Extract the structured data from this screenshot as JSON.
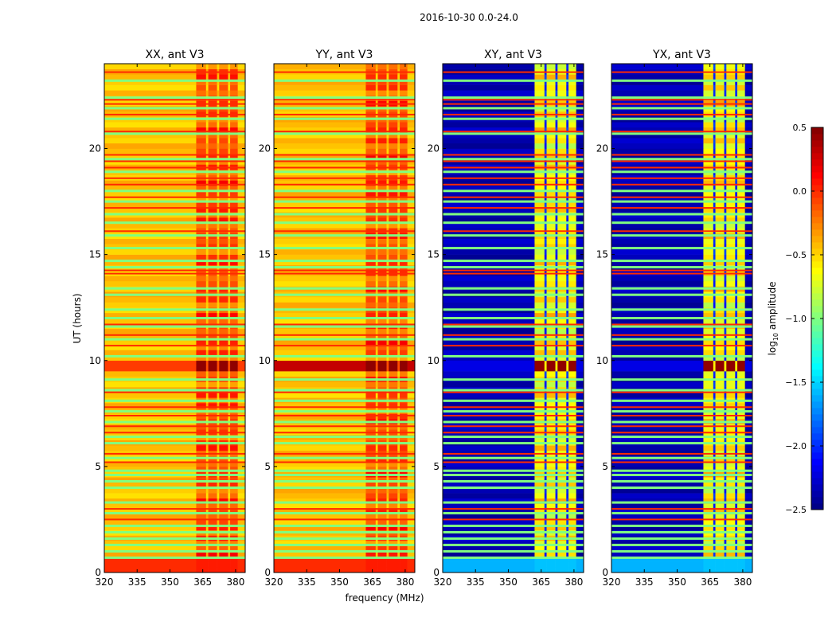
{
  "chart_data": {
    "type": "heatmap",
    "title": "2016-10-30 0.0-24.0",
    "xlabel": "frequency (MHz)",
    "ylabel": "UT (hours)",
    "xlim": [
      320,
      384.4
    ],
    "ylim": [
      0,
      24
    ],
    "xticks": [
      320,
      335,
      350,
      365,
      380
    ],
    "yticks": [
      0,
      5,
      10,
      15,
      20
    ],
    "colorbar": {
      "label_main": "log",
      "label_sub": "10",
      "label_rest": " amplitude",
      "range": [
        -2.5,
        0.5
      ],
      "ticks": [
        -2.5,
        -2.0,
        -1.5,
        -1.0,
        -0.5,
        0.0,
        0.5
      ],
      "tick_labels": [
        "−2.5",
        "−2.0",
        "−1.5",
        "−1.0",
        "−0.5",
        "0.0",
        "0.5"
      ],
      "colormap": "jet"
    },
    "rfi_band_mhz": [
      362,
      381
    ],
    "rfi_gaps_mhz": [
      [
        366.5,
        367.5
      ],
      [
        371.5,
        372.5
      ],
      [
        376.5,
        377.5
      ]
    ],
    "low_rows_hours": [
      0,
      0.7
    ],
    "bright_rows_hours": [
      9.3,
      9.9
    ],
    "flag_lines_green_hours": [
      0.7,
      1.0,
      1.3,
      1.6,
      1.9,
      2.2,
      2.8,
      3.3,
      4.0,
      4.3,
      4.6,
      4.8,
      5.4,
      6.1,
      6.4,
      7.1,
      7.6,
      8.1,
      8.6,
      9.1,
      10.2,
      11.0,
      11.6,
      12.0,
      12.4,
      13.1,
      13.4,
      14.4,
      14.7,
      15.3,
      15.9,
      16.5,
      16.9,
      17.5,
      18.0,
      18.9,
      19.5,
      20.7,
      21.4,
      21.9,
      22.4,
      23.2
    ],
    "flag_lines_red_hours": [
      2.5,
      3.0,
      5.2,
      5.6,
      6.6,
      6.9,
      7.4,
      7.8,
      8.5,
      10.7,
      11.2,
      11.7,
      14.1,
      14.25,
      16.1,
      17.2,
      17.7,
      18.3,
      18.6,
      19.1,
      19.4,
      19.7,
      20.8,
      21.6,
      22.1,
      22.3,
      23.6
    ],
    "flag_green_value": -1.0,
    "flag_red_value": 0.0,
    "panels": [
      {
        "title": "XX, ant V3",
        "quiet_value": -0.45,
        "rfi_value": -0.1,
        "gap_value": -0.45,
        "low_value": 0.0,
        "bright_value": 0.45,
        "bright_quiet_value": -0.05
      },
      {
        "title": "YY, ant V3",
        "quiet_value": -0.45,
        "rfi_value": -0.1,
        "gap_value": -0.45,
        "low_value": 0.0,
        "bright_value": 0.45,
        "bright_quiet_value": 0.3
      },
      {
        "title": "XY, ant V3",
        "quiet_value": -2.35,
        "rfi_value": -0.6,
        "gap_value": -2.0,
        "low_value": -1.6,
        "bright_value": 0.45,
        "bright_quiet_value": -2.2
      },
      {
        "title": "YX, ant V3",
        "quiet_value": -2.35,
        "rfi_value": -0.6,
        "gap_value": -2.0,
        "low_value": -1.6,
        "bright_value": 0.45,
        "bright_quiet_value": -2.2
      }
    ]
  }
}
